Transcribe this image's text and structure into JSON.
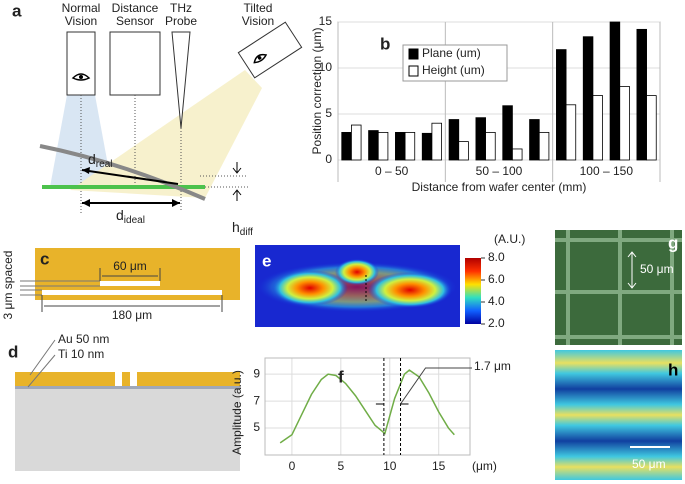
{
  "chart_data": [
    {
      "type": "bar",
      "panel": "b",
      "y_label": "Position correction (μm)",
      "x_label": "Distance from wafer center (mm)",
      "categories": [
        null,
        null,
        null,
        null,
        null,
        null,
        null,
        null,
        null,
        null,
        null,
        null
      ],
      "groups": [
        "0 – 50",
        "50 – 100",
        "100 – 150"
      ],
      "series": [
        {
          "name": "Plane (um)",
          "color": "#000000",
          "values": [
            3.0,
            3.2,
            3.0,
            2.9,
            4.4,
            4.6,
            5.9,
            4.4,
            12.0,
            13.4,
            15.0,
            14.2
          ]
        },
        {
          "name": "Height (um)",
          "color": "#ffffff",
          "values": [
            3.8,
            3.0,
            3.0,
            4.0,
            2.0,
            3.0,
            1.2,
            3.0,
            6.0,
            7.0,
            8.0,
            7.0
          ]
        }
      ],
      "ylim": [
        0,
        15
      ],
      "yticks": [
        0,
        5,
        10,
        15
      ],
      "grid": true
    },
    {
      "type": "line",
      "panel": "f",
      "y_label": "Amplitude (a.u.)",
      "x_label": "(μm)",
      "x": [
        -1.2,
        0,
        1,
        2,
        3,
        3.7,
        4.5,
        5.5,
        6.5,
        7.5,
        8.5,
        9.5,
        10.5,
        11.5,
        12,
        13,
        14,
        15,
        16,
        16.6
      ],
      "series": [
        {
          "name": null,
          "color": "#70ad47",
          "values": [
            3.9,
            4.5,
            6.0,
            7.5,
            8.6,
            9.0,
            8.9,
            8.3,
            7.4,
            6.3,
            5.2,
            4.6,
            7.2,
            9.0,
            9.3,
            8.8,
            7.6,
            6.2,
            5.0,
            4.5
          ]
        }
      ],
      "xlim": [
        -2.75,
        18.2
      ],
      "xticks": [
        0,
        5,
        10,
        15
      ],
      "ylim": [
        3,
        10.2
      ],
      "yticks": [
        5,
        7,
        9
      ],
      "grid": true,
      "markers": [
        9.4,
        11.1
      ],
      "annotation": "1.7 μm"
    }
  ],
  "diagram": {
    "a": {
      "label": "a",
      "normal_vision": [
        "Normal",
        "Vision"
      ],
      "distance_sensor": [
        "Distance",
        "Sensor"
      ],
      "thz_probe": [
        "THz",
        "Probe"
      ],
      "tilted_vision": [
        "Tilted",
        "Vision"
      ],
      "d_real": {
        "main": "d",
        "sub": "real"
      },
      "d_ideal": {
        "main": "d",
        "sub": "ideal"
      },
      "h_diff": {
        "main": "h",
        "sub": "diff"
      }
    },
    "c": {
      "label": "c",
      "short": "60 μm",
      "long": "180 μm",
      "spacing": "3 μm spaced"
    },
    "d": {
      "label": "d",
      "au": "Au 50 nm",
      "ti": "Ti 10 nm"
    },
    "e": {
      "label": "e",
      "colorbar": {
        "title": "(A.U.)",
        "lim": [
          2,
          8
        ],
        "ticks": [
          {
            "value": 8,
            "label": "8.0"
          },
          {
            "value": 6,
            "label": "6.0"
          },
          {
            "value": 4,
            "label": "4.0"
          },
          {
            "value": 2,
            "label": "2.0"
          }
        ]
      }
    },
    "g": {
      "label": "g",
      "scale": "50 μm"
    },
    "h": {
      "label": "h",
      "scale": "50 μm"
    }
  }
}
